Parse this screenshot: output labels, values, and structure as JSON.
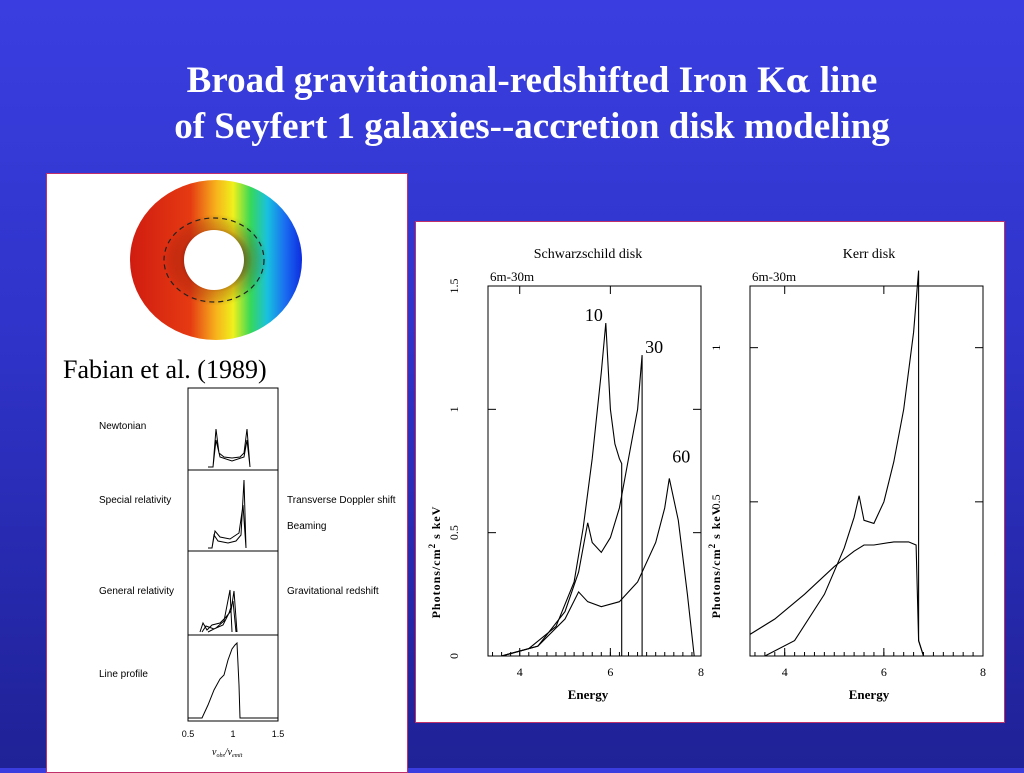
{
  "slide": {
    "title_line1_a": "Broad gravitational-redshifted Iron K",
    "title_line1_greek": "α",
    "title_line1_b": " line",
    "title_line2": "of Seyfert 1 galaxies--accretion disk modeling",
    "citation": "Fabian et al. (1989)"
  },
  "left_figure": {
    "rows": [
      {
        "left": "Newtonian",
        "right": ""
      },
      {
        "left": "Special relativity",
        "right": "Transverse Doppler shift",
        "right2": "Beaming"
      },
      {
        "left": "General relativity",
        "right": "Gravitational redshift"
      },
      {
        "left": "Line profile",
        "right": ""
      }
    ],
    "x_ticks": [
      "0.5",
      "1",
      "1.5"
    ],
    "x_label_nu": "ν",
    "x_label_obs": "obs",
    "x_label_emit": "emit"
  },
  "chart_data": [
    {
      "type": "line",
      "title": "Schwarzschild disk",
      "subtitle": "6m-30m",
      "xlabel": "Energy",
      "ylabel": "Photons/cm² s keV",
      "xlim": [
        3.3,
        8
      ],
      "ylim": [
        0,
        1.5
      ],
      "x_ticks": [
        "4",
        "6",
        "8"
      ],
      "y_ticks": [
        "0",
        "0.5",
        "1",
        "1.5"
      ],
      "annotations": [
        "10",
        "30",
        "60"
      ],
      "series": [
        {
          "name": "10",
          "x": [
            3.6,
            4.2,
            4.8,
            5.2,
            5.4,
            5.6,
            5.8,
            5.9,
            6.0,
            6.1,
            6.2,
            6.25,
            6.25,
            8
          ],
          "values": [
            0,
            0.03,
            0.12,
            0.3,
            0.52,
            0.8,
            1.15,
            1.35,
            1.0,
            0.86,
            0.8,
            0.78,
            0,
            0
          ]
        },
        {
          "name": "30",
          "x": [
            3.6,
            4.4,
            5.0,
            5.3,
            5.5,
            5.6,
            5.8,
            6.0,
            6.2,
            6.4,
            6.6,
            6.7,
            6.7,
            8
          ],
          "values": [
            0,
            0.04,
            0.18,
            0.34,
            0.54,
            0.46,
            0.42,
            0.48,
            0.6,
            0.8,
            1.0,
            1.22,
            0,
            0
          ]
        },
        {
          "name": "60",
          "x": [
            3.6,
            4.4,
            5.0,
            5.3,
            5.5,
            5.8,
            6.2,
            6.6,
            7.0,
            7.2,
            7.3,
            7.5,
            7.7,
            7.85
          ],
          "values": [
            0,
            0.04,
            0.15,
            0.26,
            0.22,
            0.2,
            0.22,
            0.3,
            0.46,
            0.6,
            0.72,
            0.55,
            0.25,
            0
          ]
        }
      ]
    },
    {
      "type": "line",
      "title": "Kerr disk",
      "subtitle": "6m-30m",
      "xlabel": "Energy",
      "ylabel": "Photons/cm² s keV",
      "xlim": [
        3.3,
        8
      ],
      "ylim": [
        0,
        1.2
      ],
      "x_ticks": [
        "4",
        "6",
        "8"
      ],
      "y_ticks": [
        "0.5",
        "1"
      ],
      "series": [
        {
          "name": "",
          "x": [
            3.6,
            4.2,
            4.8,
            5.2,
            5.4,
            5.5,
            5.6,
            5.8,
            6.0,
            6.2,
            6.4,
            6.6,
            6.7,
            6.7,
            6.8
          ],
          "values": [
            0,
            0.05,
            0.2,
            0.35,
            0.45,
            0.52,
            0.44,
            0.43,
            0.5,
            0.63,
            0.8,
            1.05,
            1.25,
            0.05,
            0
          ]
        },
        {
          "name": "",
          "x": [
            3.3,
            3.8,
            4.4,
            5.0,
            5.4,
            5.6,
            5.8,
            6.2,
            6.5,
            6.65,
            6.7,
            6.8
          ],
          "values": [
            0.07,
            0.12,
            0.2,
            0.29,
            0.34,
            0.36,
            0.36,
            0.37,
            0.37,
            0.36,
            0.05,
            0
          ]
        }
      ]
    }
  ]
}
